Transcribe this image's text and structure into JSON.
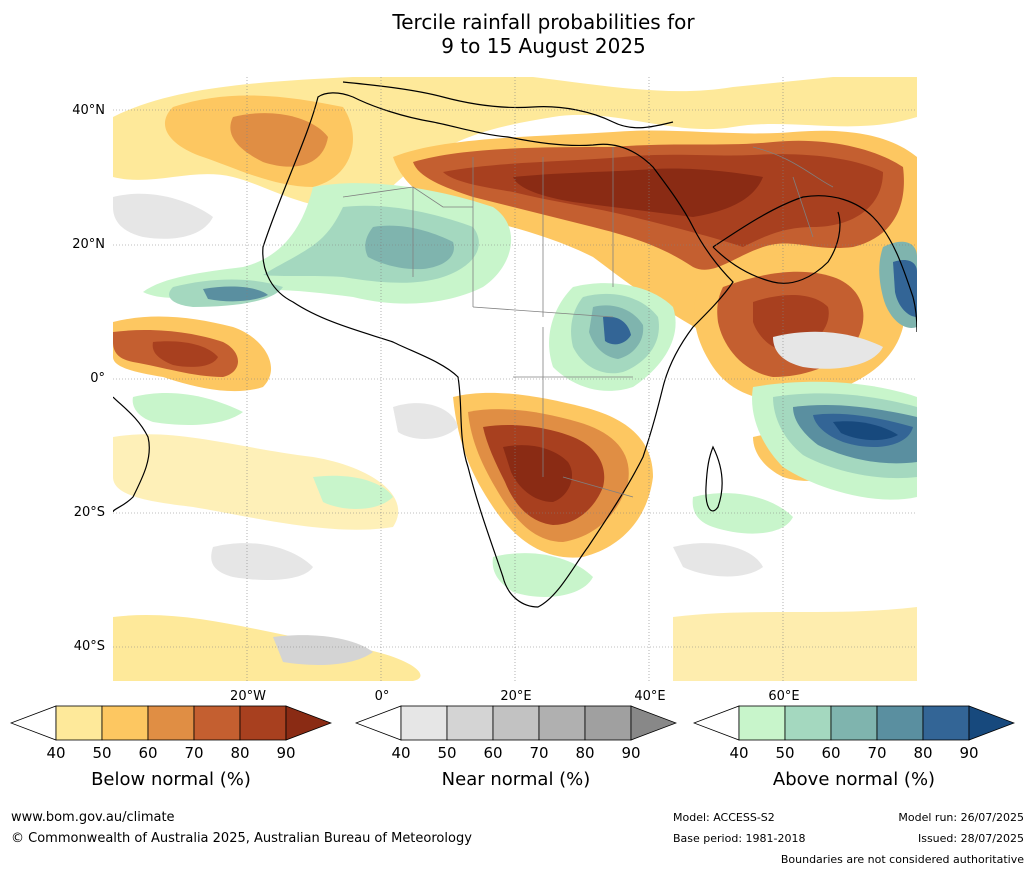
{
  "title_line1": "Tercile rainfall probabilities for",
  "title_line2": "9 to 15 August 2025",
  "lat_labels": [
    "40°N",
    "20°N",
    "0°",
    "20°S",
    "40°S"
  ],
  "lon_labels": [
    "20°W",
    "0°",
    "20°E",
    "40°E",
    "60°E"
  ],
  "colorbars": [
    {
      "label": "Below normal (%)",
      "ticks": [
        "40",
        "50",
        "60",
        "70",
        "80",
        "90"
      ],
      "colors": [
        "#ffffff",
        "#fee99a",
        "#fdc761",
        "#e08e44",
        "#c45f30",
        "#a8401f",
        "#8a2b14"
      ]
    },
    {
      "label": "Near normal (%)",
      "ticks": [
        "40",
        "50",
        "60",
        "70",
        "80",
        "90"
      ],
      "colors": [
        "#ffffff",
        "#e6e6e6",
        "#d4d4d4",
        "#c2c2c2",
        "#b0b0b0",
        "#a0a0a0",
        "#888888"
      ]
    },
    {
      "label": "Above normal (%)",
      "ticks": [
        "40",
        "50",
        "60",
        "70",
        "80",
        "90"
      ],
      "colors": [
        "#ffffff",
        "#c8f5cb",
        "#a4d8bf",
        "#7fb4ae",
        "#5a8fa0",
        "#336596",
        "#17497d"
      ]
    }
  ],
  "footer": {
    "website": "www.bom.gov.au/climate",
    "copyright": "© Commonwealth of Australia 2025, Australian Bureau of Meteorology",
    "model": "Model: ACCESS-S2",
    "base_period": "Base period: 1981-2018",
    "model_run": "Model run: 26/07/2025",
    "issued": "Issued: 28/07/2025",
    "disclaimer": "Boundaries are not considered authoritative"
  }
}
